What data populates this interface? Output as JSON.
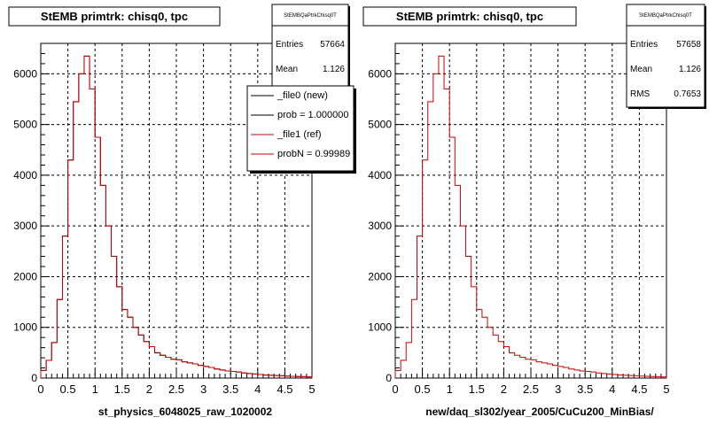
{
  "footer": {
    "stamp": ""
  },
  "panels": [
    {
      "title": "StEMB primtrk: chisq0, tpc",
      "stats": {
        "name": "StEMBQaPtrkChisq0T",
        "rows": [
          {
            "label": "Entries",
            "value": "57664"
          },
          {
            "label": "Mean",
            "value": "1.126"
          }
        ]
      },
      "legend": [
        {
          "text": "_file0 (new)",
          "color": "#000000"
        },
        {
          "text": "prob = 1.000000",
          "color": "#000000"
        },
        {
          "text": "_file1 (ref)",
          "color": "#cc0000"
        },
        {
          "text": "probN = 0.99989",
          "color": "#cc0000"
        }
      ]
    },
    {
      "title": "StEMB primtrk: chisq0, tpc",
      "stats": {
        "name": "StEMBQaPtrkChisq0T",
        "rows": [
          {
            "label": "Entries",
            "value": "57658"
          },
          {
            "label": "Mean",
            "value": "1.126"
          },
          {
            "label": "RMS",
            "value": "0.7653"
          }
        ]
      },
      "legend": []
    }
  ],
  "chart_data": [
    {
      "type": "histogram",
      "title": "StEMB primtrk: chisq0, tpc",
      "xlabel": "st_physics_6048025_raw_1020002",
      "ylabel": "",
      "xlim": [
        0,
        5
      ],
      "ylim": [
        0,
        6600
      ],
      "xticks": [
        "0",
        "0.5",
        "1",
        "1.5",
        "2",
        "2.5",
        "3",
        "3.5",
        "4",
        "4.5",
        "5"
      ],
      "yticks": [
        "0",
        "1000",
        "2000",
        "3000",
        "4000",
        "5000",
        "6000"
      ],
      "grid": true,
      "bin_width": 0.1,
      "series": [
        {
          "name": "_file0 (new)",
          "color": "#000000",
          "values": [
            150,
            350,
            700,
            1550,
            2800,
            4300,
            5450,
            6000,
            6350,
            5700,
            4750,
            3800,
            3000,
            2400,
            1800,
            1350,
            1200,
            1000,
            850,
            720,
            620,
            500,
            450,
            410,
            370,
            360,
            320,
            300,
            280,
            250,
            230,
            210,
            180,
            160,
            140,
            130,
            120,
            100,
            90,
            80,
            70,
            60,
            55,
            50,
            45,
            40,
            35,
            30,
            28,
            25
          ]
        },
        {
          "name": "_file1 (ref)",
          "color": "#cc0000",
          "values": [
            150,
            350,
            700,
            1550,
            2800,
            4300,
            5450,
            6000,
            6350,
            5700,
            4750,
            3800,
            3000,
            2400,
            1800,
            1350,
            1200,
            1000,
            850,
            720,
            620,
            500,
            450,
            410,
            370,
            360,
            320,
            300,
            280,
            250,
            230,
            210,
            180,
            160,
            140,
            130,
            120,
            100,
            90,
            80,
            70,
            60,
            55,
            50,
            45,
            40,
            35,
            30,
            28,
            25
          ]
        }
      ]
    },
    {
      "type": "histogram",
      "title": "StEMB primtrk: chisq0, tpc",
      "xlabel": "new/daq_sl302/year_2005/CuCu200_MinBias/",
      "ylabel": "",
      "xlim": [
        0,
        5
      ],
      "ylim": [
        0,
        6600
      ],
      "xticks": [
        "0",
        "0.5",
        "1",
        "1.5",
        "2",
        "2.5",
        "3",
        "3.5",
        "4",
        "4.5",
        "5"
      ],
      "yticks": [
        "0",
        "1000",
        "2000",
        "3000",
        "4000",
        "5000",
        "6000"
      ],
      "grid": true,
      "bin_width": 0.1,
      "series": [
        {
          "name": "",
          "color": "#cc0000",
          "values": [
            150,
            350,
            700,
            1550,
            2800,
            4300,
            5450,
            6000,
            6350,
            5700,
            4750,
            3800,
            3000,
            2400,
            1800,
            1350,
            1200,
            1000,
            850,
            720,
            620,
            500,
            450,
            410,
            370,
            360,
            320,
            300,
            280,
            250,
            230,
            210,
            180,
            160,
            140,
            130,
            120,
            100,
            90,
            80,
            70,
            60,
            55,
            50,
            45,
            40,
            35,
            30,
            28,
            25
          ]
        }
      ]
    }
  ]
}
